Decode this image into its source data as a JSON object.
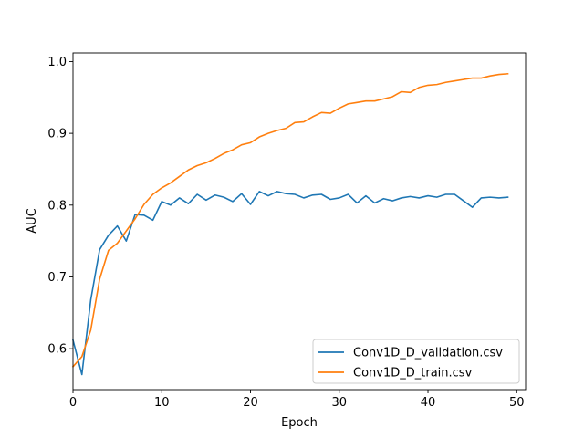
{
  "chart_data": {
    "type": "line",
    "title": "",
    "xlabel": "Epoch",
    "ylabel": "AUC",
    "xlim": [
      0,
      51
    ],
    "ylim": [
      0.543,
      1.012
    ],
    "xticks": [
      0,
      10,
      20,
      30,
      40,
      50
    ],
    "xtick_labels": [
      "0",
      "10",
      "20",
      "30",
      "40",
      "50"
    ],
    "yticks": [
      0.6,
      0.7,
      0.8,
      0.9,
      1.0
    ],
    "ytick_labels": [
      "0.6",
      "0.7",
      "0.8",
      "0.9",
      "1.0"
    ],
    "grid": false,
    "legend_position": "lower-right",
    "x": [
      0,
      1,
      2,
      3,
      4,
      5,
      6,
      7,
      8,
      9,
      10,
      11,
      12,
      13,
      14,
      15,
      16,
      17,
      18,
      19,
      20,
      21,
      22,
      23,
      24,
      25,
      26,
      27,
      28,
      29,
      30,
      31,
      32,
      33,
      34,
      35,
      36,
      37,
      38,
      39,
      40,
      41,
      42,
      43,
      44,
      45,
      46,
      47,
      48,
      49
    ],
    "series": [
      {
        "name": "Conv1D_D_validation.csv",
        "color": "#1f77b4",
        "values": [
          0.612,
          0.564,
          0.668,
          0.738,
          0.758,
          0.771,
          0.75,
          0.787,
          0.786,
          0.779,
          0.805,
          0.8,
          0.81,
          0.802,
          0.815,
          0.807,
          0.814,
          0.811,
          0.805,
          0.816,
          0.801,
          0.819,
          0.813,
          0.819,
          0.816,
          0.815,
          0.81,
          0.814,
          0.815,
          0.808,
          0.81,
          0.815,
          0.803,
          0.813,
          0.803,
          0.809,
          0.806,
          0.81,
          0.812,
          0.81,
          0.813,
          0.811,
          0.815,
          0.815,
          0.806,
          0.797,
          0.81,
          0.811,
          0.81,
          0.811
        ]
      },
      {
        "name": "Conv1D_D_train.csv",
        "color": "#ff7f0e",
        "values": [
          0.575,
          0.589,
          0.626,
          0.697,
          0.737,
          0.747,
          0.764,
          0.781,
          0.801,
          0.815,
          0.824,
          0.831,
          0.84,
          0.849,
          0.855,
          0.859,
          0.865,
          0.872,
          0.877,
          0.884,
          0.887,
          0.895,
          0.9,
          0.904,
          0.907,
          0.915,
          0.916,
          0.923,
          0.929,
          0.928,
          0.935,
          0.941,
          0.943,
          0.945,
          0.945,
          0.948,
          0.951,
          0.958,
          0.957,
          0.964,
          0.967,
          0.968,
          0.971,
          0.973,
          0.975,
          0.977,
          0.977,
          0.98,
          0.982,
          0.983
        ]
      }
    ]
  }
}
